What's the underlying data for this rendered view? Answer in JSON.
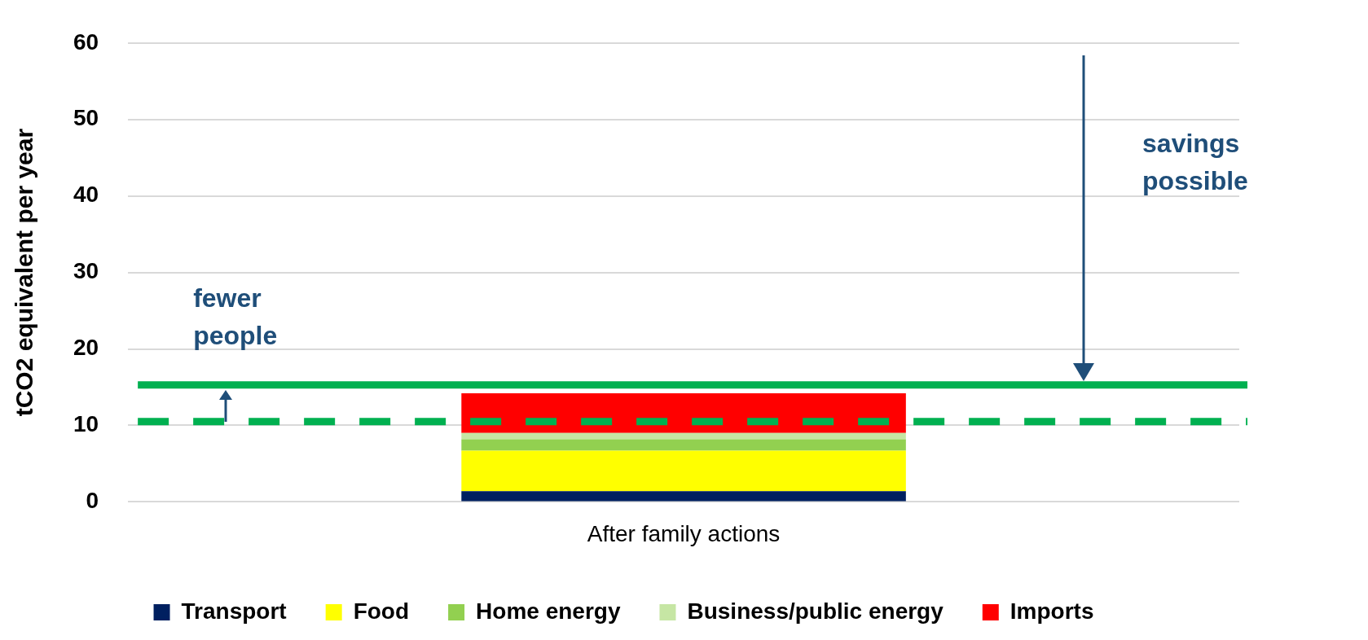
{
  "chart_data": {
    "type": "bar",
    "stacked": true,
    "ylabel": "tCO2 equivalent per year",
    "categories": [
      "After family actions"
    ],
    "series": [
      {
        "name": "Transport",
        "color": "#002060",
        "values": [
          1.4
        ]
      },
      {
        "name": "Food",
        "color": "#ffff00",
        "values": [
          5.3
        ]
      },
      {
        "name": "Home energy",
        "color": "#92d050",
        "values": [
          1.5
        ]
      },
      {
        "name": "Business/public energy",
        "color": "#c6e6a4",
        "values": [
          0.8
        ]
      },
      {
        "name": "Imports",
        "color": "#ff0000",
        "values": [
          5.2
        ]
      }
    ],
    "ylim": [
      0,
      60
    ],
    "yticks": [
      0,
      10,
      20,
      30,
      40,
      50,
      60
    ],
    "grid": "y",
    "legend": "bottom",
    "ref_lines": [
      {
        "axis": "y",
        "value": 15.3,
        "color": "#00b050",
        "line_style": "solid"
      },
      {
        "axis": "y",
        "value": 10.5,
        "color": "#00b050",
        "line_style": "dashed"
      }
    ],
    "annotations": [
      "fewer people",
      "savings possible"
    ]
  }
}
